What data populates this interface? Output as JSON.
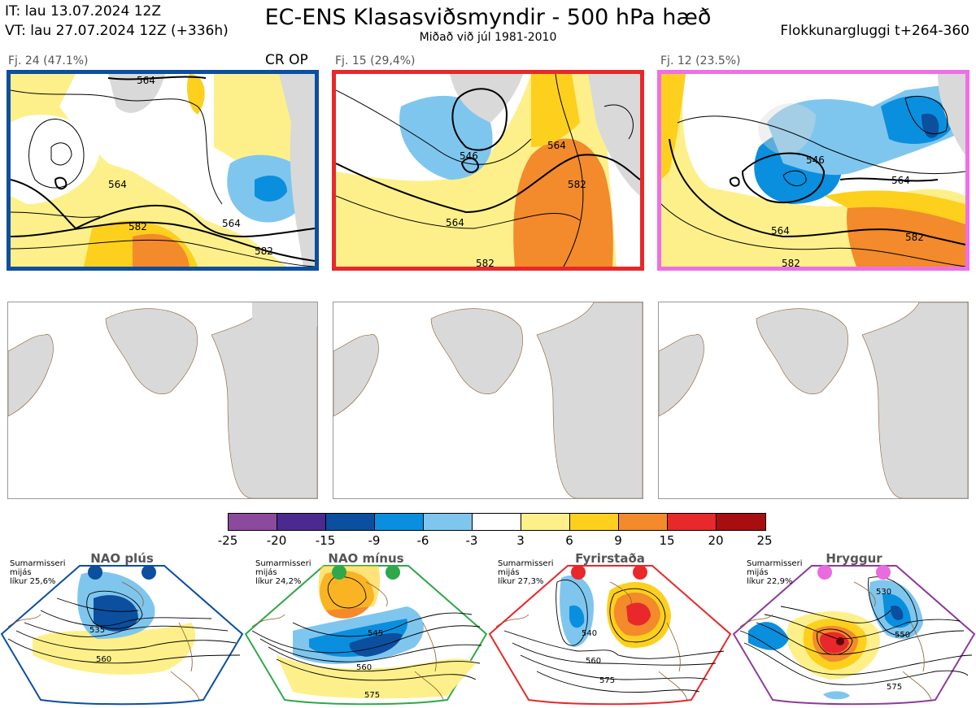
{
  "header": {
    "it_line": "IT: lau 13.07.2024 12Z",
    "vt_line": "VT: lau 27.07.2024 12Z  (+336h)",
    "title": "EC-ENS Klasasviðsmyndir - 500 hPa hæð",
    "subtitle": "Miðað við júl 1981-2010",
    "window": "Flokkunargluggi t+264-360"
  },
  "clusters": [
    {
      "label": "Fj. 24 (47.1%)",
      "tag": "CR OP",
      "border_color": "#0b4f9e"
    },
    {
      "label": "Fj. 15 (29,4%)",
      "tag": "",
      "border_color": "#e8282a"
    },
    {
      "label": "Fj. 12 (23.5%)",
      "tag": "",
      "border_color": "#ee6fe7"
    }
  ],
  "contour_labels": {
    "c1": [
      "564",
      "564",
      "582",
      "564",
      "582"
    ],
    "c2": [
      "546",
      "564",
      "582",
      "564",
      "582"
    ],
    "c3": [
      "546",
      "564",
      "564",
      "582",
      "582"
    ]
  },
  "colorbar": {
    "colors": [
      "#8c4a9c",
      "#4b2a8f",
      "#0b4f9e",
      "#0a8fde",
      "#7fc6ee",
      "#ffffff",
      "#fdf08a",
      "#fdd01e",
      "#f38a2b",
      "#e8282a",
      "#a80d12"
    ],
    "ticks": [
      "-25",
      "-20",
      "-15",
      "-9",
      "-6",
      "-3",
      "3",
      "6",
      "9",
      "15",
      "20",
      "25"
    ]
  },
  "regimes": [
    {
      "name": "NAO plús",
      "season": "Sumarmisseri",
      "period": "mijás",
      "prob": "líkur 25,6%",
      "color": "#0b4f9e",
      "contours": [
        "535",
        "560"
      ]
    },
    {
      "name": "NAO mínus",
      "season": "Sumarmisseri",
      "period": "mijás",
      "prob": "líkur 24,2%",
      "color": "#2ea84a",
      "contours": [
        "545",
        "560",
        "575"
      ]
    },
    {
      "name": "Fyrirstaða",
      "season": "Sumarmisseri",
      "period": "mijás",
      "prob": "líkur 27,3%",
      "color": "#e8282a",
      "contours": [
        "540",
        "560",
        "575"
      ]
    },
    {
      "name": "Hryggur",
      "season": "Sumarmisseri",
      "period": "mijás",
      "prob": "líkur 22,9%",
      "color": "#e86be0",
      "contours": [
        "530",
        "550",
        "575"
      ]
    }
  ]
}
